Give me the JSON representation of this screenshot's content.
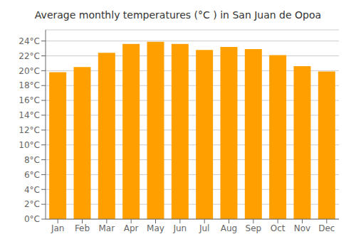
{
  "chart_data": {
    "type": "bar",
    "title": "Average monthly temperatures (°C ) in San Juan de Opoa",
    "categories": [
      "Jan",
      "Feb",
      "Mar",
      "Apr",
      "May",
      "Jun",
      "Jul",
      "Aug",
      "Sep",
      "Oct",
      "Nov",
      "Dec"
    ],
    "values": [
      19.8,
      20.5,
      22.4,
      23.6,
      23.9,
      23.6,
      22.8,
      23.2,
      22.9,
      22.1,
      20.6,
      19.9
    ],
    "color": "#FFA000",
    "ylim": [
      0,
      25.5
    ],
    "yticks": [
      {
        "value": 0,
        "label": "0°C"
      },
      {
        "value": 2,
        "label": "2°C"
      },
      {
        "value": 4,
        "label": "4°C"
      },
      {
        "value": 6,
        "label": "6°C"
      },
      {
        "value": 8,
        "label": "8°C"
      },
      {
        "value": 10,
        "label": "10°C"
      },
      {
        "value": 12,
        "label": "12°C"
      },
      {
        "value": 14,
        "label": "14°C"
      },
      {
        "value": 16,
        "label": "16°C"
      },
      {
        "value": 18,
        "label": "18°C"
      },
      {
        "value": 20,
        "label": "20°C"
      },
      {
        "value": 22,
        "label": "22°C"
      },
      {
        "value": 24,
        "label": "24°C"
      }
    ],
    "grid": true
  }
}
